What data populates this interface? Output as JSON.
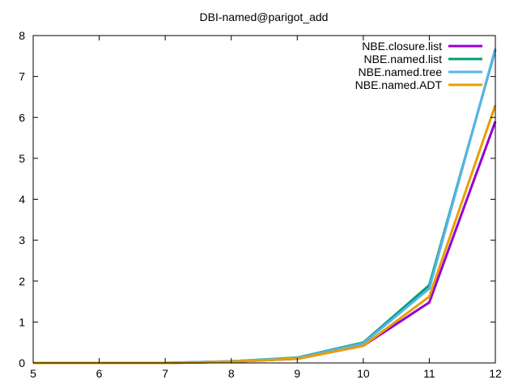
{
  "chart_data": {
    "type": "line",
    "title": "DBI-named@parigot_add",
    "xlabel": "",
    "ylabel": "",
    "xlim": [
      5,
      12
    ],
    "ylim": [
      0,
      8
    ],
    "x_ticks": [
      5,
      6,
      7,
      8,
      9,
      10,
      11,
      12
    ],
    "y_ticks": [
      0,
      1,
      2,
      3,
      4,
      5,
      6,
      7,
      8
    ],
    "grid": false,
    "legend_position": "top-right",
    "series": [
      {
        "name": "NBE.closure.list",
        "color": "#9400d3",
        "x": [
          5,
          6,
          7,
          8,
          9,
          10,
          11,
          12
        ],
        "y": [
          0.0,
          0.0,
          0.0,
          0.03,
          0.1,
          0.42,
          1.48,
          5.9
        ]
      },
      {
        "name": "NBE.named.list",
        "color": "#009e73",
        "x": [
          5,
          6,
          7,
          8,
          9,
          10,
          11,
          12
        ],
        "y": [
          0.0,
          0.0,
          0.0,
          0.04,
          0.13,
          0.5,
          1.9,
          7.65
        ]
      },
      {
        "name": "NBE.named.tree",
        "color": "#56b4e9",
        "x": [
          5,
          6,
          7,
          8,
          9,
          10,
          11,
          12
        ],
        "y": [
          0.0,
          0.0,
          0.0,
          0.04,
          0.12,
          0.48,
          1.82,
          7.68
        ]
      },
      {
        "name": "NBE.named.ADT",
        "color": "#e69f00",
        "x": [
          5,
          6,
          7,
          8,
          9,
          10,
          11,
          12
        ],
        "y": [
          0.0,
          0.0,
          0.0,
          0.03,
          0.1,
          0.42,
          1.62,
          6.3
        ]
      }
    ]
  }
}
